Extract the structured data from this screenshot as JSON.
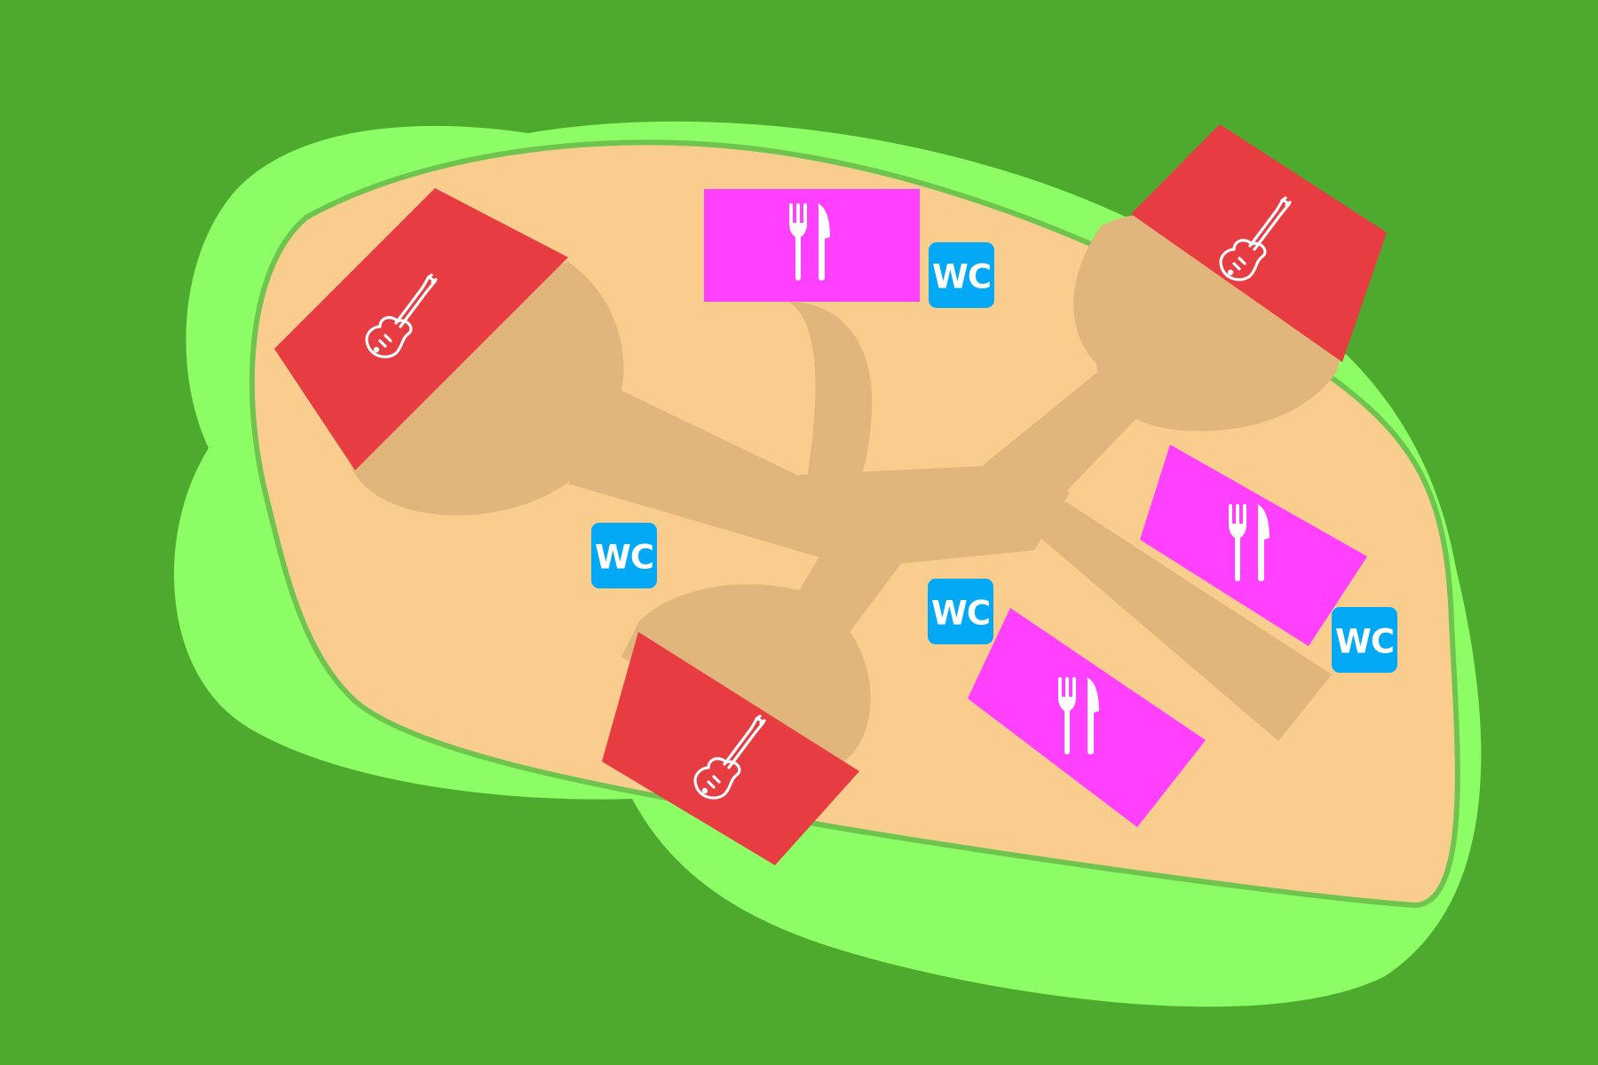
{
  "map": {
    "colors": {
      "background": "#4eaa2f",
      "grass": "#8cfd64",
      "grounds": "#f8cd8e",
      "grounds_outline": "#6fc450",
      "paths": "#e0b67d",
      "stage": "#e73c42",
      "food": "#ff40ff",
      "toilet": "#03a9f4",
      "icon": "#ffffff"
    },
    "stages": [
      {
        "name": "stage",
        "icon": "guitar-icon"
      },
      {
        "name": "stage",
        "icon": "guitar-icon"
      },
      {
        "name": "stage",
        "icon": "guitar-icon"
      }
    ],
    "food_areas": [
      {
        "name": "food",
        "icon": "fork-knife-icon"
      },
      {
        "name": "food",
        "icon": "fork-knife-icon"
      },
      {
        "name": "food",
        "icon": "fork-knife-icon"
      }
    ],
    "toilets": [
      {
        "label": "WC",
        "icon": "wc-icon"
      },
      {
        "label": "WC",
        "icon": "wc-icon"
      },
      {
        "label": "WC",
        "icon": "wc-icon"
      },
      {
        "label": "WC",
        "icon": "wc-icon"
      }
    ]
  }
}
